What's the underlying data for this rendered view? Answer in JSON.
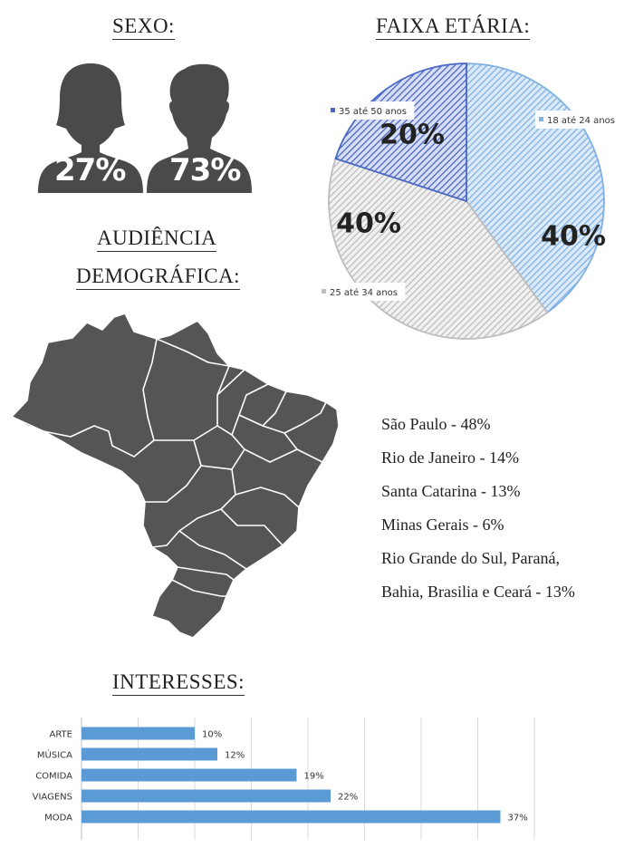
{
  "headings": {
    "sexo": "SEXO:",
    "faixa_etaria": "FAIXA ETÁRIA:",
    "audiencia_line1": "AUDIÊNCIA",
    "audiencia_line2": "DEMOGRÁFICA:",
    "interesses": "INTERESSES:"
  },
  "sexo": {
    "female_pct": "27%",
    "male_pct": "73%",
    "female_value": 27,
    "male_value": 73,
    "icon_color": "#4a4a4a",
    "female_icon": "woman-silhouette-icon",
    "male_icon": "man-silhouette-icon"
  },
  "audiencia": {
    "map_icon": "brazil-map-icon",
    "map_color": "#555555",
    "regions": [
      "São Paulo - 48%",
      "Rio de Janeiro - 14%",
      "Santa Catarina - 13%",
      "Minas Gerais - 6%",
      "Rio Grande do Sul, Paraná,",
      "Bahia, Brasilia e Ceará - 13%"
    ]
  },
  "chart_data": [
    {
      "type": "pie",
      "title": "FAIXA ETÁRIA:",
      "slices": [
        {
          "label": "18 até 24 anos",
          "value": 40,
          "pct_label": "40%",
          "color": "#7fb1e3",
          "hatch": "#dce9f7"
        },
        {
          "label": "25 até 34 anos",
          "value": 40,
          "pct_label": "40%",
          "color": "#bdbdbd",
          "hatch": "#f1f1f1"
        },
        {
          "label": "35 até 50 anos",
          "value": 20,
          "pct_label": "20%",
          "color": "#4a68c4",
          "hatch": "#d8def4"
        }
      ],
      "start_angle_deg": 0,
      "direction": "clockwise"
    },
    {
      "type": "bar",
      "orientation": "horizontal",
      "title": "INTERESSES:",
      "categories": [
        "ARTE",
        "MÚSICA",
        "COMIDA",
        "VIAGENS",
        "MODA"
      ],
      "values": [
        10,
        12,
        19,
        22,
        37
      ],
      "value_labels": [
        "10%",
        "12%",
        "19%",
        "22%",
        "37%"
      ],
      "xlim": [
        0,
        40
      ],
      "grid": true,
      "bar_color": "#5b9bd5"
    }
  ]
}
